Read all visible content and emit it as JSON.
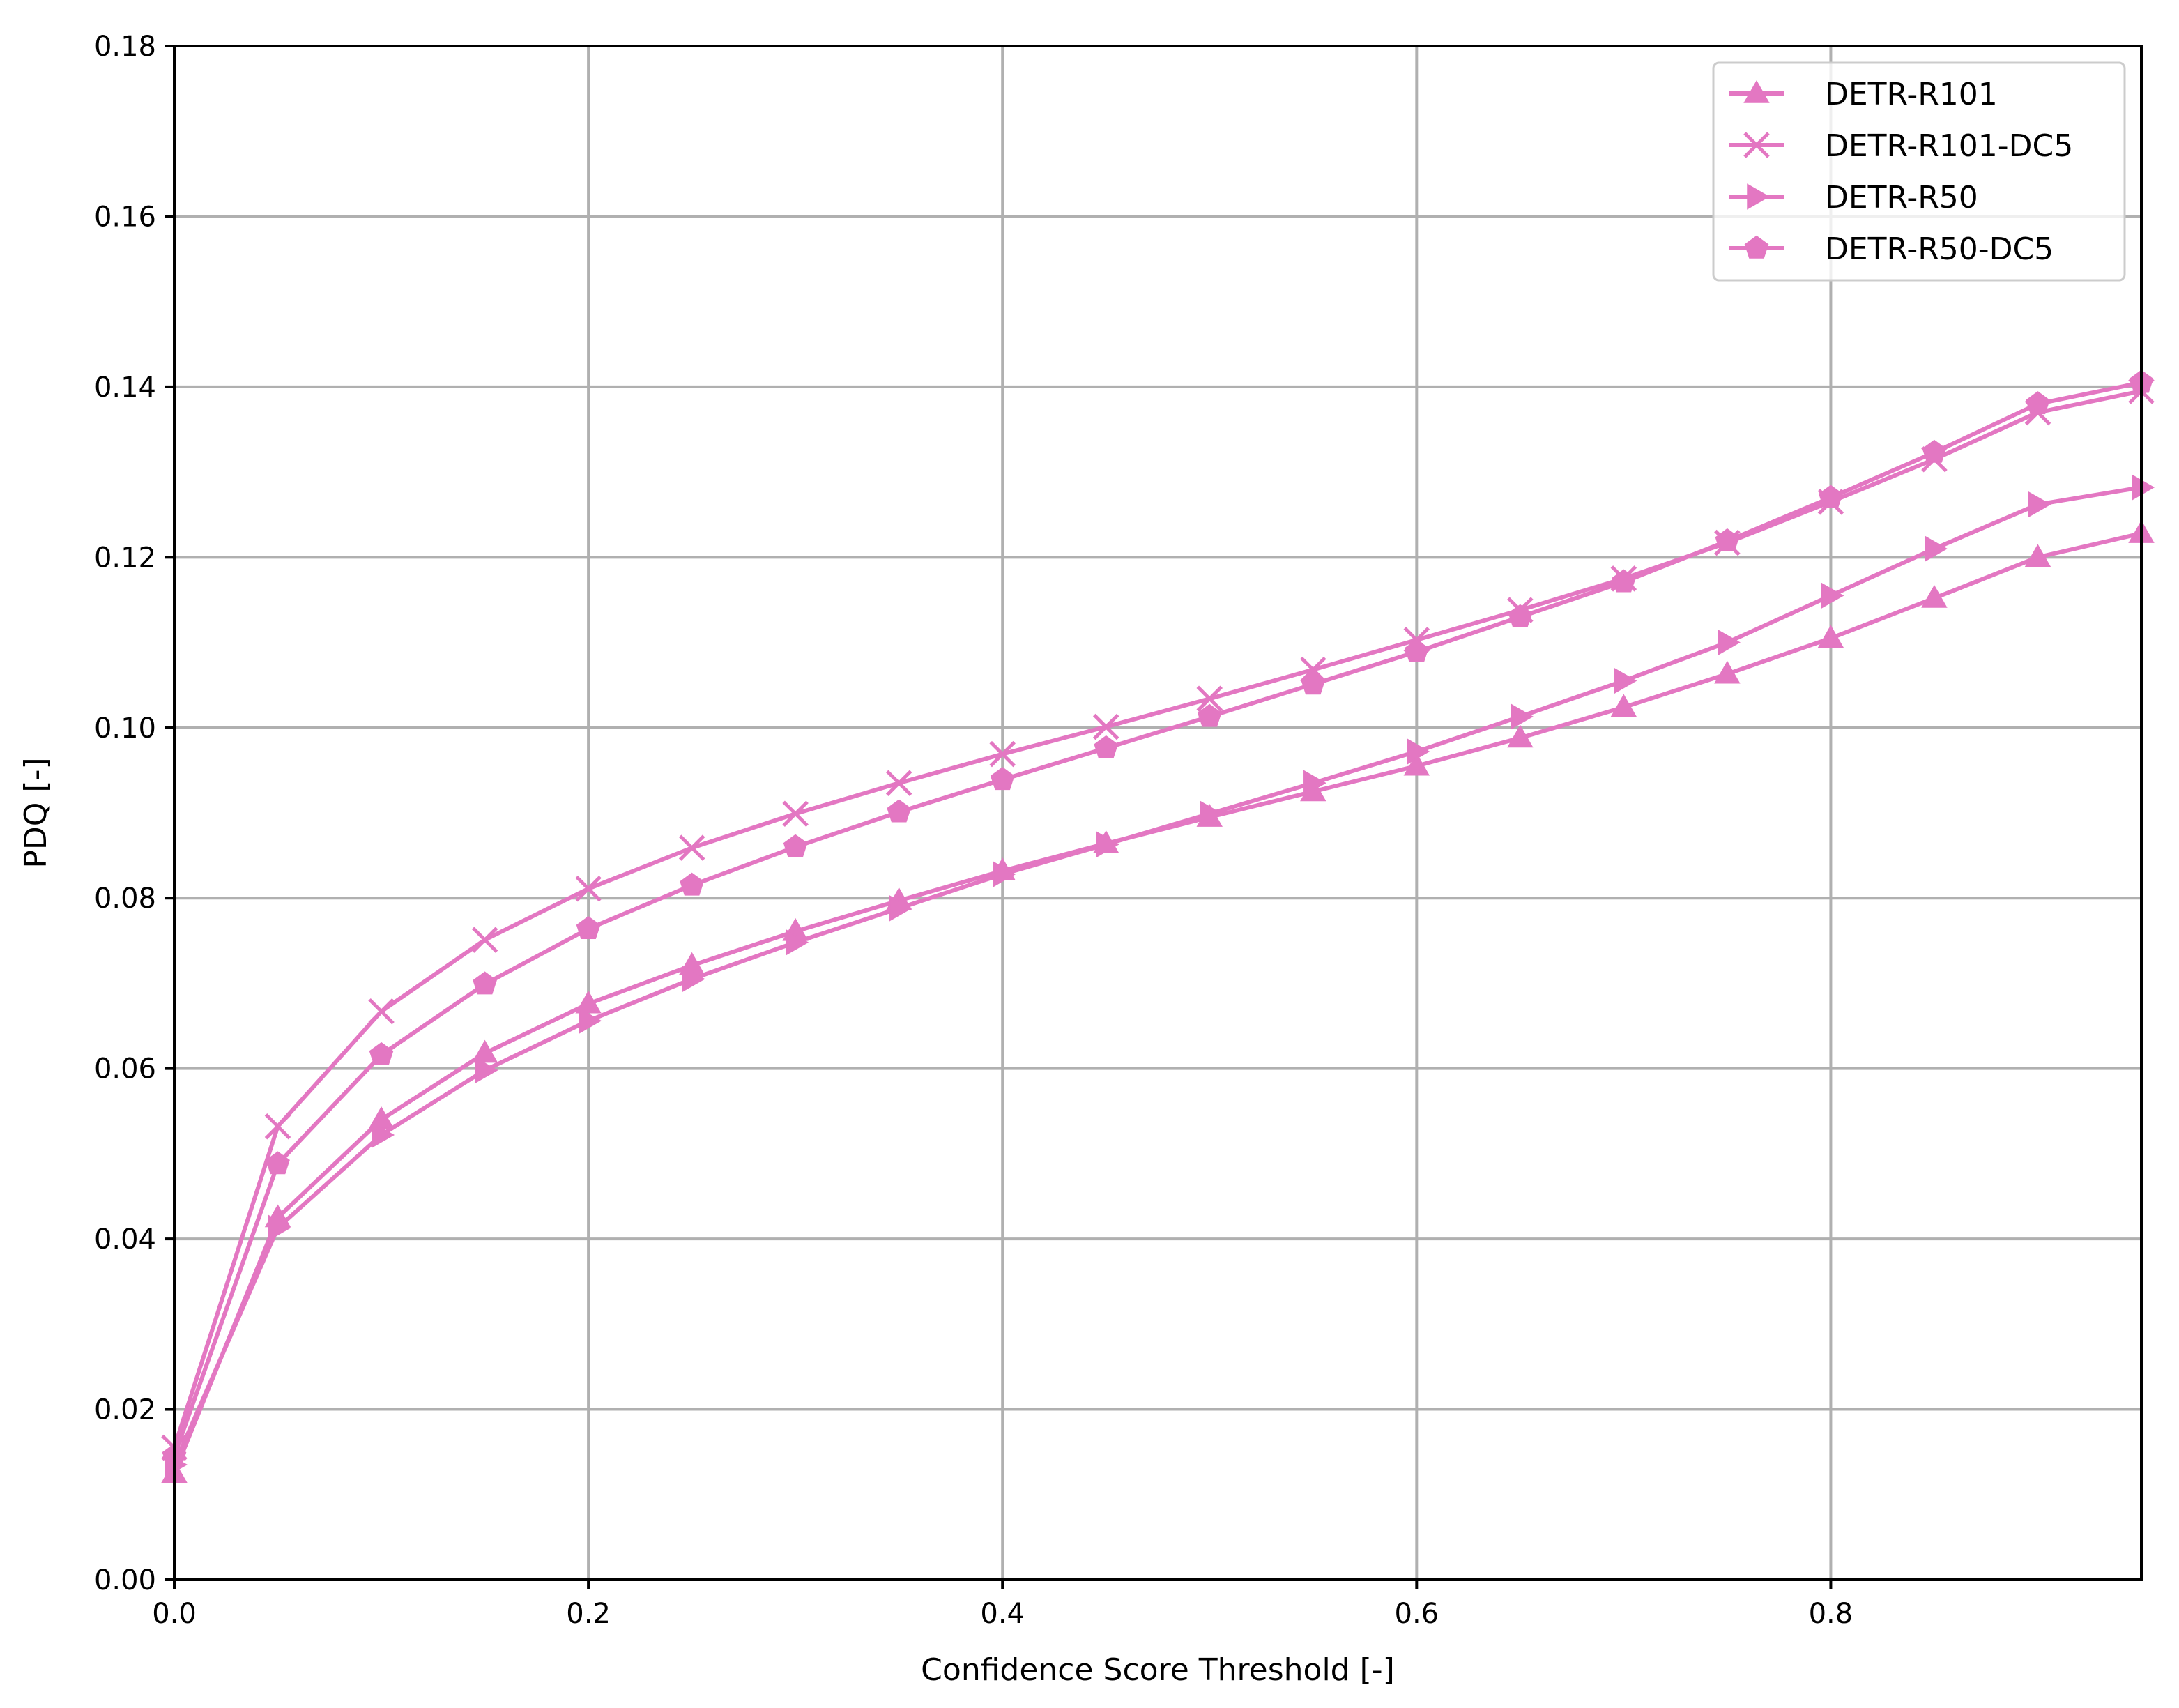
{
  "chart_data": {
    "type": "line",
    "title": "",
    "xlabel": "Confidence Score Threshold [-]",
    "ylabel": "PDQ [-]",
    "xlim": [
      0.0,
      0.95
    ],
    "ylim": [
      0.0,
      0.18
    ],
    "xticks": [
      "0.0",
      "0.2",
      "0.4",
      "0.6",
      "0.8"
    ],
    "yticks": [
      "0.00",
      "0.02",
      "0.04",
      "0.06",
      "0.08",
      "0.10",
      "0.12",
      "0.14",
      "0.16",
      "0.18"
    ],
    "grid": true,
    "legend_position": "top-right",
    "x": [
      0.0,
      0.05,
      0.1,
      0.15,
      0.2,
      0.25,
      0.3,
      0.35,
      0.4,
      0.45,
      0.5,
      0.55,
      0.6,
      0.65,
      0.7,
      0.75,
      0.8,
      0.85,
      0.9,
      0.95
    ],
    "series": [
      {
        "name": "DETR-R101",
        "marker": "triangle-up",
        "color": "#e377c2",
        "values": [
          0.0125,
          0.0425,
          0.054,
          0.0618,
          0.0676,
          0.0721,
          0.0761,
          0.0797,
          0.0832,
          0.0864,
          0.0895,
          0.0925,
          0.0955,
          0.0988,
          0.1024,
          0.1063,
          0.1105,
          0.1152,
          0.12,
          0.1228
        ]
      },
      {
        "name": "DETR-R101-DC5",
        "marker": "x",
        "color": "#e377c2",
        "values": [
          0.0155,
          0.0532,
          0.0667,
          0.0751,
          0.0811,
          0.0859,
          0.0899,
          0.0935,
          0.0969,
          0.1001,
          0.1034,
          0.1068,
          0.1103,
          0.1138,
          0.1175,
          0.1217,
          0.1265,
          0.1315,
          0.137,
          0.1395
        ]
      },
      {
        "name": "DETR-R50",
        "marker": "triangle-right",
        "color": "#e377c2",
        "values": [
          0.0135,
          0.0413,
          0.0522,
          0.0598,
          0.0656,
          0.0705,
          0.0748,
          0.0788,
          0.0828,
          0.0863,
          0.0899,
          0.0935,
          0.0972,
          0.1013,
          0.1055,
          0.11,
          0.1155,
          0.121,
          0.1262,
          0.1282
        ]
      },
      {
        "name": "DETR-R50-DC5",
        "marker": "pentagon",
        "color": "#e377c2",
        "values": [
          0.0145,
          0.0488,
          0.0616,
          0.0699,
          0.0764,
          0.0815,
          0.086,
          0.0901,
          0.0939,
          0.0976,
          0.1013,
          0.1051,
          0.1089,
          0.113,
          0.1171,
          0.1219,
          0.127,
          0.1323,
          0.138,
          0.1405
        ]
      }
    ]
  }
}
